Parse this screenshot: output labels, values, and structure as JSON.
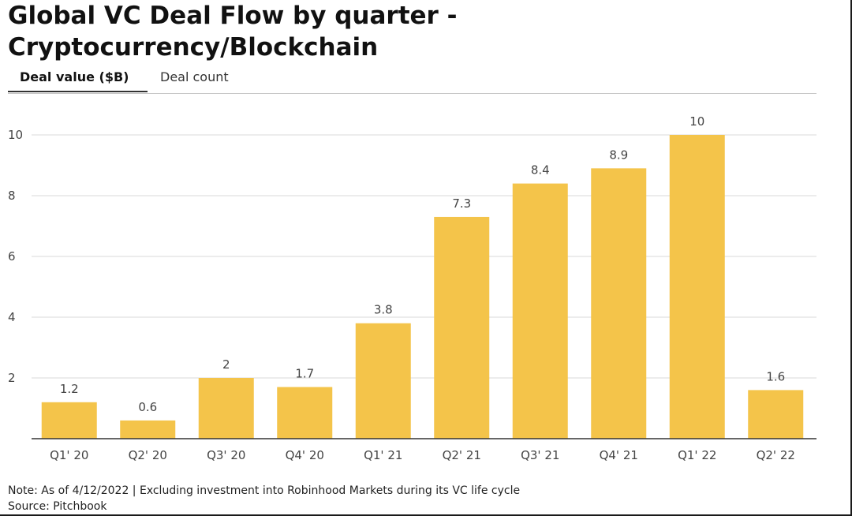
{
  "title": "Global VC Deal Flow by quarter - Cryptocurrency/Blockchain",
  "tabs": [
    {
      "label": "Deal value ($B)",
      "active": true
    },
    {
      "label": "Deal count",
      "active": false
    }
  ],
  "footer": {
    "note": "Note: As of 4/12/2022 | Excluding investment into Robinhood Markets during its VC life cycle",
    "source": "Source: Pitchbook"
  },
  "colors": {
    "bar": "#F4C44A",
    "gridline": "#d9d9d9",
    "axis": "#333333"
  },
  "chart_data": {
    "type": "bar",
    "title": "",
    "xlabel": "",
    "ylabel": "",
    "categories": [
      "Q1' 20",
      "Q2' 20",
      "Q3' 20",
      "Q4' 20",
      "Q1' 21",
      "Q2' 21",
      "Q3' 21",
      "Q4' 21",
      "Q1' 22",
      "Q2' 22"
    ],
    "values": [
      1.2,
      0.6,
      2,
      1.7,
      3.8,
      7.3,
      8.4,
      8.9,
      10,
      1.6
    ],
    "value_labels": [
      "1.2",
      "0.6",
      "2",
      "1.7",
      "3.8",
      "7.3",
      "8.4",
      "8.9",
      "10",
      "1.6"
    ],
    "ylim": [
      0,
      10
    ],
    "yticks": [
      2,
      4,
      6,
      8,
      10
    ],
    "grid": true,
    "legend": "none"
  }
}
